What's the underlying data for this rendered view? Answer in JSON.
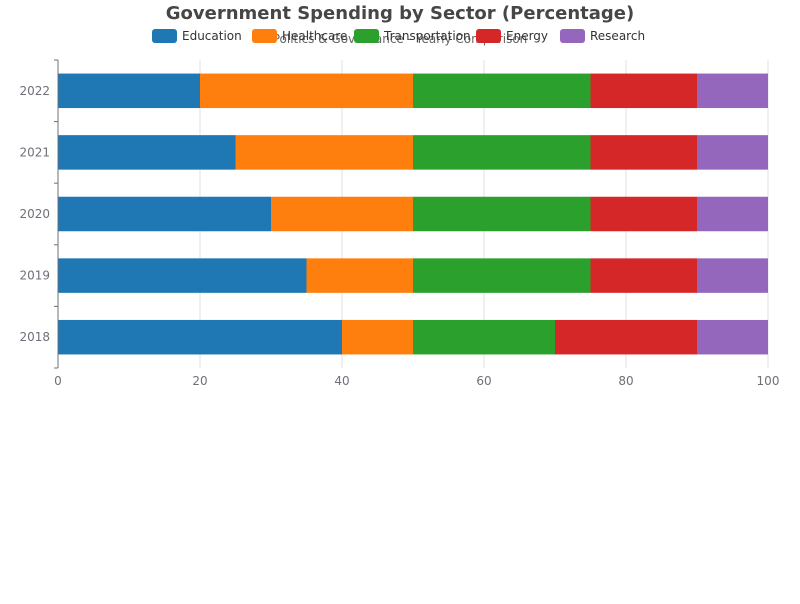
{
  "chart_data": {
    "type": "bar",
    "orientation": "horizontal",
    "stacked": true,
    "title": "Government Spending by Sector (Percentage)",
    "subtitle": "Politics & Governance - Yearly Comparison",
    "xlabel": "",
    "ylabel": "",
    "xlim": [
      0,
      100
    ],
    "x_ticks": [
      0,
      20,
      40,
      60,
      80,
      100
    ],
    "grid": true,
    "legend_position": "top",
    "categories": [
      "2018",
      "2019",
      "2020",
      "2021",
      "2022"
    ],
    "series": [
      {
        "name": "Education",
        "color": "#1f77b4",
        "values": [
          40,
          35,
          30,
          25,
          20
        ]
      },
      {
        "name": "Healthcare",
        "color": "#ff7f0e",
        "values": [
          10,
          15,
          20,
          25,
          30
        ]
      },
      {
        "name": "Transportation",
        "color": "#2ca02c",
        "values": [
          20,
          25,
          25,
          25,
          25
        ]
      },
      {
        "name": "Energy",
        "color": "#d62728",
        "values": [
          20,
          15,
          15,
          15,
          15
        ]
      },
      {
        "name": "Research",
        "color": "#9467bd",
        "values": [
          10,
          10,
          10,
          10,
          10
        ]
      }
    ]
  }
}
